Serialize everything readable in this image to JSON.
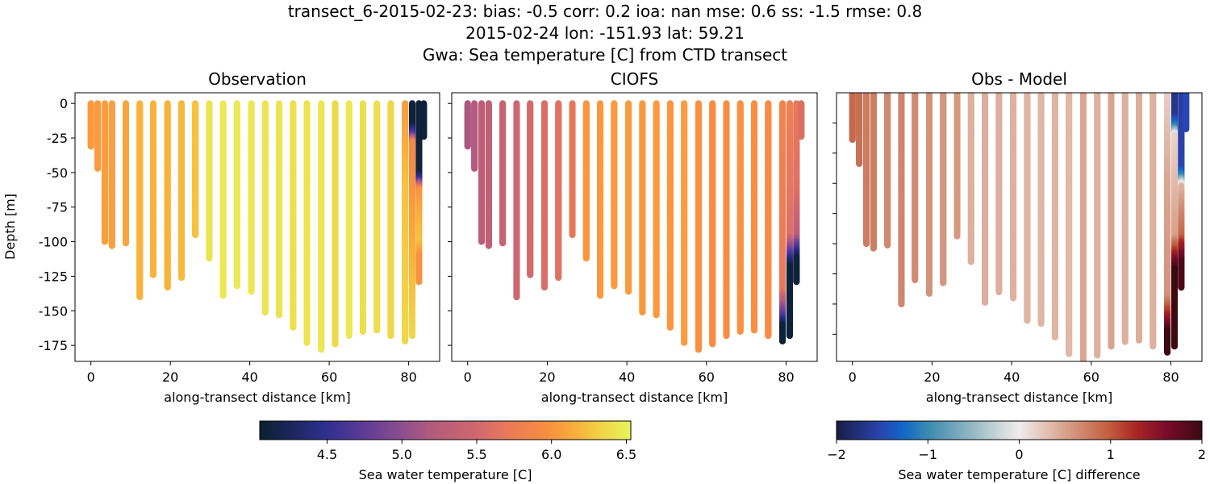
{
  "figure": {
    "suptitle_line1": "transect_6-2015-02-23: bias: -0.5  corr: 0.2  ioa: nan  mse: 0.6  ss: -1.5  rmse: 0.8",
    "suptitle_line2": "2015-02-24 lon: -151.93 lat: 59.21",
    "suptitle_line3": "Gwa: Sea temperature [C] from CTD transect"
  },
  "chart_data": [
    {
      "type": "scatter",
      "title": "Observation",
      "xlabel": "along-transect distance [km]",
      "ylabel": "Depth [m]",
      "xlim": [
        -4,
        87.8
      ],
      "ylim": [
        -186.6,
        7.7
      ],
      "xticks": [
        0,
        20,
        40,
        60,
        80
      ],
      "yticks": [
        0,
        -25,
        -50,
        -75,
        -100,
        -125,
        -150,
        -175
      ],
      "field": "obs",
      "colormap": "thermal"
    },
    {
      "type": "scatter",
      "title": "CIOFS",
      "xlabel": "along-transect distance [km]",
      "xlim": [
        -4,
        87.8
      ],
      "ylim": [
        -186.6,
        7.7
      ],
      "xticks": [
        0,
        20,
        40,
        60,
        80
      ],
      "yticks": [
        0,
        -25,
        -50,
        -75,
        -100,
        -125,
        -150,
        -175
      ],
      "field": "model",
      "colormap": "thermal"
    },
    {
      "type": "scatter",
      "title": "Obs - Model",
      "xlabel": "along-transect distance [km]",
      "xlim": [
        -4,
        87.8
      ],
      "ylim": [
        -178,
        0
      ],
      "xticks": [
        0,
        20,
        40,
        60,
        80
      ],
      "yticks_unlabeled": [
        -20,
        -40,
        -60,
        -80,
        -100,
        -120,
        -140,
        -160
      ],
      "field": "diff",
      "colormap": "balance"
    }
  ],
  "stations": [
    {
      "x": 0,
      "bottom": -31,
      "obs": [
        [
          0,
          6.05
        ]
      ],
      "model": [
        [
          0,
          5.15
        ]
      ]
    },
    {
      "x": 1.7,
      "bottom": -47,
      "obs": [
        [
          0,
          6.05
        ]
      ],
      "model": [
        [
          0,
          5.2
        ]
      ]
    },
    {
      "x": 3.5,
      "bottom": -100,
      "obs": [
        [
          0,
          6.07
        ]
      ],
      "model": [
        [
          0,
          5.3
        ]
      ]
    },
    {
      "x": 5.3,
      "bottom": -103,
      "obs": [
        [
          0,
          6.07
        ]
      ],
      "model": [
        [
          0,
          5.32
        ]
      ]
    },
    {
      "x": 8.8,
      "bottom": -101,
      "obs": [
        [
          0,
          6.1
        ]
      ],
      "model": [
        [
          0,
          5.42
        ]
      ]
    },
    {
      "x": 12.3,
      "bottom": -140,
      "obs": [
        [
          0,
          6.18
        ]
      ],
      "model": [
        [
          0,
          5.48
        ]
      ]
    },
    {
      "x": 15.7,
      "bottom": -124,
      "obs": [
        [
          0,
          6.18
        ]
      ],
      "model": [
        [
          0,
          5.52
        ]
      ]
    },
    {
      "x": 19.3,
      "bottom": -133,
      "obs": [
        [
          0,
          6.18
        ]
      ],
      "model": [
        [
          0,
          5.58
        ]
      ]
    },
    {
      "x": 22.8,
      "bottom": -126,
      "obs": [
        [
          0,
          6.2
        ]
      ],
      "model": [
        [
          0,
          5.62
        ]
      ]
    },
    {
      "x": 26.3,
      "bottom": -95,
      "obs": [
        [
          0,
          6.25
        ]
      ],
      "model": [
        [
          0,
          5.68
        ]
      ]
    },
    {
      "x": 29.8,
      "bottom": -112,
      "obs": [
        [
          0,
          6.42
        ]
      ],
      "model": [
        [
          0,
          6.02
        ]
      ]
    },
    {
      "x": 33.3,
      "bottom": -139,
      "obs": [
        [
          0,
          6.45
        ]
      ],
      "model": [
        [
          0,
          6.04
        ]
      ]
    },
    {
      "x": 36.8,
      "bottom": -132,
      "obs": [
        [
          0,
          6.47
        ]
      ],
      "model": [
        [
          0,
          6.05
        ]
      ]
    },
    {
      "x": 40.4,
      "bottom": -136,
      "obs": [
        [
          0,
          6.45
        ]
      ],
      "model": [
        [
          0,
          6.05
        ]
      ]
    },
    {
      "x": 43.9,
      "bottom": -151,
      "obs": [
        [
          0,
          6.42
        ]
      ],
      "model": [
        [
          0,
          6.04
        ]
      ]
    },
    {
      "x": 47.4,
      "bottom": -153,
      "obs": [
        [
          0,
          6.42
        ]
      ],
      "model": [
        [
          0,
          6.05
        ]
      ]
    },
    {
      "x": 50.9,
      "bottom": -162,
      "obs": [
        [
          0,
          6.4
        ]
      ],
      "model": [
        [
          0,
          6.02
        ]
      ]
    },
    {
      "x": 54.4,
      "bottom": -173,
      "obs": [
        [
          0,
          6.42
        ]
      ],
      "model": [
        [
          0,
          6.06
        ]
      ]
    },
    {
      "x": 58.0,
      "bottom": -178,
      "obs": [
        [
          0,
          6.45
        ]
      ],
      "model": [
        [
          0,
          5.98
        ]
      ]
    },
    {
      "x": 61.5,
      "bottom": -174,
      "obs": [
        [
          0,
          6.36
        ]
      ],
      "model": [
        [
          0,
          5.97
        ]
      ]
    },
    {
      "x": 65.0,
      "bottom": -168,
      "obs": [
        [
          0,
          6.45
        ]
      ],
      "model": [
        [
          0,
          5.96
        ]
      ]
    },
    {
      "x": 68.5,
      "bottom": -165,
      "obs": [
        [
          0,
          6.4
        ]
      ],
      "model": [
        [
          0,
          6.0
        ]
      ]
    },
    {
      "x": 72.0,
      "bottom": -164,
      "obs": [
        [
          0,
          6.4
        ]
      ],
      "model": [
        [
          0,
          5.98
        ]
      ]
    },
    {
      "x": 75.5,
      "bottom": -168,
      "obs": [
        [
          0,
          6.35
        ]
      ],
      "model": [
        [
          0,
          5.95
        ]
      ]
    },
    {
      "x": 79.1,
      "bottom": -172,
      "obs": [
        [
          0,
          6.05
        ],
        [
          -60,
          6.25
        ],
        [
          -172,
          6.35
        ]
      ],
      "model": [
        [
          0,
          5.85
        ],
        [
          -135,
          5.7
        ],
        [
          -155,
          4.6
        ],
        [
          -160,
          4.1
        ],
        [
          -172,
          4.1
        ]
      ]
    },
    {
      "x": 80.9,
      "bottom": -168,
      "obs": [
        [
          0,
          4.1
        ],
        [
          -15,
          4.1
        ],
        [
          -22,
          4.7
        ],
        [
          -28,
          5.9
        ],
        [
          -168,
          6.35
        ]
      ],
      "model": [
        [
          0,
          5.8
        ],
        [
          -95,
          5.6
        ],
        [
          -110,
          4.6
        ],
        [
          -118,
          4.1
        ],
        [
          -168,
          4.1
        ]
      ]
    },
    {
      "x": 82.6,
      "bottom": -129,
      "obs": [
        [
          0,
          4.1
        ],
        [
          -50,
          4.1
        ],
        [
          -55,
          4.6
        ],
        [
          -62,
          6.0
        ],
        [
          -80,
          6.15
        ],
        [
          -100,
          6.25
        ],
        [
          -110,
          6.0
        ],
        [
          -129,
          6.0
        ]
      ],
      "model": [
        [
          0,
          5.7
        ],
        [
          -65,
          5.6
        ],
        [
          -95,
          5.3
        ],
        [
          -105,
          4.6
        ],
        [
          -112,
          4.1
        ],
        [
          -129,
          4.1
        ]
      ]
    },
    {
      "x": 83.8,
      "bottom": -24,
      "obs": [
        [
          0,
          4.1
        ]
      ],
      "model": [
        [
          0,
          5.6
        ]
      ]
    }
  ],
  "colorbars": [
    {
      "label": "Sea water temperature [C]",
      "range": [
        4.05,
        6.53
      ],
      "ticks": [
        "4.5",
        "5.0",
        "5.5",
        "6.0",
        "6.5"
      ],
      "colormap": "thermal"
    },
    {
      "label": "Sea water temperature [C] difference",
      "range": [
        -2,
        2
      ],
      "ticks": [
        "−2",
        "−1",
        "0",
        "1",
        "2"
      ],
      "colormap": "balance"
    }
  ],
  "colormaps": {
    "thermal": [
      [
        0,
        "#0a2030"
      ],
      [
        0.18,
        "#2e2f90"
      ],
      [
        0.27,
        "#5a3a96"
      ],
      [
        0.38,
        "#8a4e8e"
      ],
      [
        0.46,
        "#b35a7e"
      ],
      [
        0.58,
        "#cf6670"
      ],
      [
        0.66,
        "#e8785c"
      ],
      [
        0.78,
        "#f98f3f"
      ],
      [
        0.86,
        "#f9b43c"
      ],
      [
        0.92,
        "#f0d448"
      ],
      [
        1,
        "#e8f55a"
      ]
    ],
    "balance": [
      [
        0,
        "#181c43"
      ],
      [
        0.12,
        "#2a44b0"
      ],
      [
        0.18,
        "#0f66c8"
      ],
      [
        0.25,
        "#3a8ab0"
      ],
      [
        0.38,
        "#9cbcc4"
      ],
      [
        0.5,
        "#f1ecec"
      ],
      [
        0.62,
        "#d9a590"
      ],
      [
        0.75,
        "#c15b3c"
      ],
      [
        0.82,
        "#a92424"
      ],
      [
        0.9,
        "#7a0c2a"
      ],
      [
        1,
        "#3c0912"
      ]
    ]
  }
}
